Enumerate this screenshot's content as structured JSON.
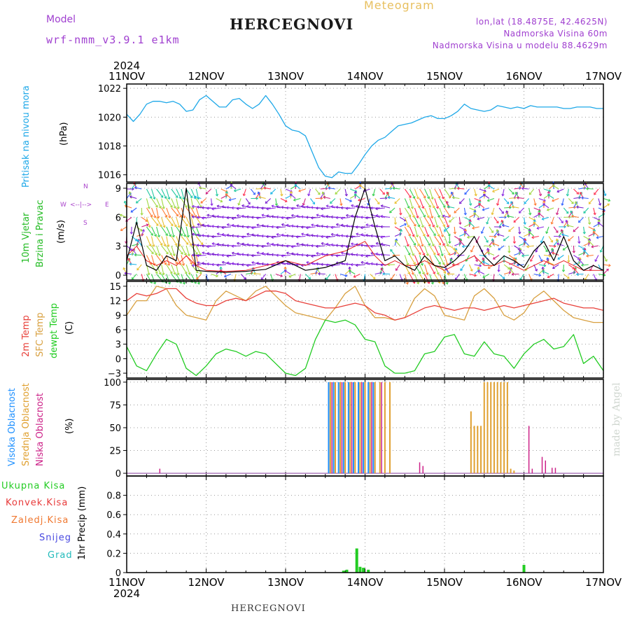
{
  "header": {
    "model_label": "Model",
    "model_value": "wrf-nmm_v3.9.1 e1km",
    "station": "HERCEGNOVI",
    "product": "Meteogram",
    "coords": "lon,lat (18.4875E, 42.4625N)",
    "elev": "Nadmorska Visina 60m",
    "elev_model": "Nadmorska Visina u modelu 88.4629m",
    "footer_station": "HERCEGNOVI",
    "watermark": "made by Angel"
  },
  "colors": {
    "pressure": "#1ea8e8",
    "temp2m": "#e8403a",
    "sfc": "#d8a040",
    "dewpt": "#22cc22",
    "cloud_high": "#1e90ff",
    "cloud_mid": "#e0a030",
    "cloud_low": "#cc2288",
    "precip_total": "#22cc22",
    "wind_speed": "#000000",
    "wind_gust": "#e82020",
    "wind_label": "#22bb22",
    "compass": "#aa44cc"
  },
  "labels": {
    "pressure_title": "Pritisak na nivou mora",
    "pressure_unit": "(hPa)",
    "wind_title1": "10m Vjetar",
    "wind_title2": "Brzina i Pravac",
    "wind_unit": "(m/s)",
    "compass_n": "N",
    "compass_s": "S",
    "compass_w": "W",
    "compass_e": "E",
    "compass_line": "<--|-->",
    "temp_t2m": "2m Temp",
    "temp_sfc": "SFC Temp",
    "temp_dew": "dewpt Temp",
    "temp_unit": "(C)",
    "cloud_high": "Visoka Oblacnost",
    "cloud_mid": "Srednja Oblacnost",
    "cloud_low": "Niska Oblacnost",
    "cloud_unit": "(%)",
    "precip_total": "Ukupna Kisa",
    "precip_conv": "Konvek.Kisa",
    "precip_frz": "Zaledj.Kisa",
    "precip_snow": "Snijeg",
    "precip_hail": "Grad",
    "precip_unit": "1hr Precip (mm)"
  },
  "chart_data": {
    "type": "meteogram",
    "x_dates": [
      "11NOV",
      "12NOV",
      "13NOV",
      "14NOV",
      "15NOV",
      "16NOV",
      "17NOV"
    ],
    "year": "2024",
    "x_range_hours": [
      0,
      144
    ],
    "panels": [
      {
        "name": "pressure",
        "type": "line",
        "ylim": [
          1015.5,
          1022.3
        ],
        "yticks": [
          "1016",
          "1018",
          "1020",
          "1022"
        ],
        "ytick_values": [
          1016,
          1018,
          1020,
          1022
        ],
        "x": [
          0,
          2,
          4,
          6,
          8,
          10,
          12,
          14,
          16,
          18,
          20,
          22,
          24,
          26,
          28,
          30,
          32,
          34,
          36,
          38,
          40,
          42,
          44,
          46,
          48,
          50,
          52,
          54,
          56,
          58,
          60,
          62,
          64,
          66,
          68,
          70,
          72,
          74,
          76,
          78,
          80,
          82,
          84,
          86,
          88,
          90,
          92,
          94,
          96,
          98,
          100,
          102,
          104,
          106,
          108,
          110,
          112,
          114,
          116,
          118,
          120,
          122,
          124,
          126,
          128,
          130,
          132,
          134,
          136,
          138,
          140,
          142,
          144
        ],
        "y": [
          1020.2,
          1019.7,
          1020.2,
          1020.9,
          1021.1,
          1021.1,
          1021.0,
          1021.1,
          1020.9,
          1020.4,
          1020.5,
          1021.2,
          1021.5,
          1021.1,
          1020.7,
          1020.7,
          1021.2,
          1021.3,
          1020.9,
          1020.6,
          1020.9,
          1021.5,
          1020.9,
          1020.2,
          1019.4,
          1019.1,
          1019.0,
          1018.7,
          1017.6,
          1016.5,
          1015.9,
          1015.8,
          1016.2,
          1016.1,
          1016.1,
          1016.7,
          1017.4,
          1018.0,
          1018.4,
          1018.6,
          1019.0,
          1019.4,
          1019.5,
          1019.6,
          1019.8,
          1020.0,
          1020.1,
          1019.9,
          1019.9,
          1020.1,
          1020.4,
          1020.9,
          1020.6,
          1020.5,
          1020.4,
          1020.5,
          1020.8,
          1020.7,
          1020.6,
          1020.7,
          1020.6,
          1020.8,
          1020.7,
          1020.7,
          1020.7,
          1020.7,
          1020.6,
          1020.6,
          1020.7,
          1020.7,
          1020.7,
          1020.6,
          1020.6
        ]
      },
      {
        "name": "wind",
        "type": "line+barbs",
        "ylim": [
          -0.5,
          9.5
        ],
        "yticks": [
          "0",
          "3",
          "6",
          "9"
        ],
        "ytick_values": [
          0,
          3,
          6,
          9
        ],
        "x": [
          0,
          3,
          6,
          9,
          12,
          15,
          18,
          21,
          24,
          30,
          36,
          42,
          48,
          54,
          60,
          66,
          69,
          72,
          75,
          78,
          81,
          84,
          87,
          90,
          93,
          96,
          99,
          102,
          105,
          108,
          111,
          114,
          117,
          120,
          123,
          126,
          129,
          132,
          135,
          138,
          141,
          144
        ],
        "speed": [
          1.5,
          5.5,
          1.0,
          0.5,
          2.0,
          1.5,
          9.0,
          0.5,
          0.4,
          0.3,
          0.4,
          0.6,
          1.5,
          0.5,
          0.8,
          1.5,
          6.0,
          9.0,
          5.0,
          1.5,
          2.0,
          1.0,
          0.5,
          2.0,
          1.0,
          0.8,
          1.5,
          2.5,
          4.0,
          2.0,
          1.0,
          2.0,
          1.5,
          0.8,
          2.5,
          3.5,
          1.5,
          4.0,
          1.5,
          0.5,
          1.0,
          0.5
        ],
        "gust": [
          2.0,
          3.0,
          1.5,
          1.0,
          1.5,
          1.0,
          2.0,
          1.0,
          0.5,
          0.4,
          0.5,
          1.0,
          1.5,
          1.0,
          2.0,
          2.5,
          3.0,
          3.5,
          2.0,
          1.0,
          1.5,
          1.0,
          1.0,
          1.5,
          1.0,
          0.5,
          1.0,
          1.5,
          2.0,
          1.0,
          1.0,
          1.5,
          1.0,
          0.5,
          1.0,
          1.5,
          1.0,
          1.5,
          1.0,
          0.5,
          0.5,
          0.5
        ]
      },
      {
        "name": "temperature",
        "type": "line",
        "ylim": [
          -4,
          16
        ],
        "yticks": [
          "−3",
          "0",
          "3",
          "6",
          "9",
          "12",
          "15"
        ],
        "ytick_values": [
          -3,
          0,
          3,
          6,
          9,
          12,
          15
        ],
        "x": [
          0,
          3,
          6,
          9,
          12,
          15,
          18,
          21,
          24,
          27,
          30,
          33,
          36,
          39,
          42,
          45,
          48,
          51,
          54,
          57,
          60,
          63,
          66,
          69,
          72,
          75,
          78,
          81,
          84,
          87,
          90,
          93,
          96,
          99,
          102,
          105,
          108,
          111,
          114,
          117,
          120,
          123,
          126,
          129,
          132,
          135,
          138,
          141,
          144
        ],
        "t2m": [
          12.0,
          13.5,
          13.0,
          13.5,
          14.5,
          14.5,
          12.5,
          11.5,
          11.0,
          11.0,
          12.0,
          12.5,
          12.0,
          13.0,
          14.0,
          14.0,
          13.5,
          12.0,
          11.5,
          11.0,
          10.5,
          10.5,
          11.0,
          11.5,
          11.0,
          9.5,
          9.0,
          8.0,
          8.5,
          9.5,
          10.5,
          11.0,
          10.5,
          10.0,
          10.5,
          10.5,
          10.0,
          10.5,
          11.0,
          10.5,
          11.0,
          11.5,
          12.0,
          12.5,
          11.5,
          11.0,
          10.5,
          10.5,
          10.0
        ],
        "sfc": [
          9.0,
          12.0,
          12.0,
          15.0,
          14.5,
          11.0,
          9.0,
          8.5,
          8.0,
          12.0,
          14.0,
          13.0,
          12.0,
          14.0,
          15.0,
          13.0,
          11.0,
          9.5,
          9.0,
          8.5,
          8.0,
          10.5,
          13.5,
          15.0,
          11.0,
          8.5,
          8.5,
          8.0,
          8.5,
          12.5,
          14.5,
          13.0,
          9.0,
          8.5,
          8.0,
          13.0,
          14.5,
          12.5,
          9.0,
          8.0,
          9.5,
          12.5,
          14.0,
          12.0,
          10.0,
          8.5,
          8.0,
          7.5,
          7.5
        ],
        "dewpt": [
          2.5,
          -1.5,
          -2.5,
          1.0,
          4.0,
          3.0,
          -2.0,
          -3.5,
          -1.5,
          1.0,
          2.0,
          1.5,
          0.5,
          1.5,
          1.0,
          -1.0,
          -3.0,
          -3.5,
          -2.0,
          4.0,
          8.0,
          7.5,
          8.0,
          7.0,
          4.0,
          3.5,
          -1.5,
          -3.0,
          -3.0,
          -2.5,
          1.0,
          1.5,
          4.5,
          5.0,
          1.0,
          0.5,
          3.5,
          1.0,
          0.5,
          -2.0,
          1.0,
          3.0,
          4.0,
          2.0,
          2.5,
          5.0,
          -1.0,
          0.5,
          -2.5
        ]
      },
      {
        "name": "clouds",
        "type": "bar",
        "ylim": [
          -3,
          103
        ],
        "yticks": [
          "0",
          "25",
          "50",
          "75",
          "100"
        ],
        "ytick_values": [
          0,
          25,
          50,
          75,
          100
        ],
        "high": {
          "x": [
            61.0,
            62.5,
            64.0,
            65.5,
            67.0,
            68.5,
            70.0,
            71.5,
            73.0,
            74.5
          ],
          "values": [
            100,
            100,
            100,
            100,
            100,
            100,
            100,
            100,
            100,
            100
          ]
        },
        "mid": {
          "x": [
            61.5,
            63.0,
            64.5,
            66.0,
            67.5,
            69.0,
            70.5,
            72.0,
            73.5,
            75.0,
            76.5,
            78.0,
            79.5,
            104.0,
            105.0,
            106.0,
            107.0,
            108.0,
            109.0,
            110.0,
            111.0,
            112.0,
            113.0,
            114.0,
            115.0,
            116.0,
            117.0
          ],
          "values": [
            100,
            100,
            100,
            100,
            100,
            100,
            100,
            100,
            100,
            100,
            100,
            100,
            100,
            68,
            52,
            52,
            52,
            100,
            100,
            100,
            100,
            100,
            100,
            100,
            100,
            5,
            3
          ]
        },
        "low": {
          "x": [
            10.0,
            62.0,
            65.0,
            68.0,
            71.0,
            74.0,
            77.0,
            88.5,
            89.5,
            121.5,
            122.5,
            125.5,
            126.5,
            128.5,
            129.5
          ],
          "values": [
            5,
            100,
            100,
            100,
            100,
            100,
            100,
            12,
            8,
            52,
            5,
            18,
            14,
            6,
            6
          ]
        }
      },
      {
        "name": "precip",
        "type": "bar",
        "ylim": [
          0,
          1.0
        ],
        "yticks": [
          "0",
          "0.2",
          "0.4",
          "0.6",
          "0.8"
        ],
        "ytick_values": [
          0,
          0.2,
          0.4,
          0.6,
          0.8
        ],
        "total": {
          "x": [
            65.5,
            66.5,
            69.5,
            70.5,
            71.5,
            73.0,
            120.0
          ],
          "values": [
            0.02,
            0.03,
            0.25,
            0.06,
            0.05,
            0.03,
            0.08
          ]
        }
      }
    ]
  }
}
